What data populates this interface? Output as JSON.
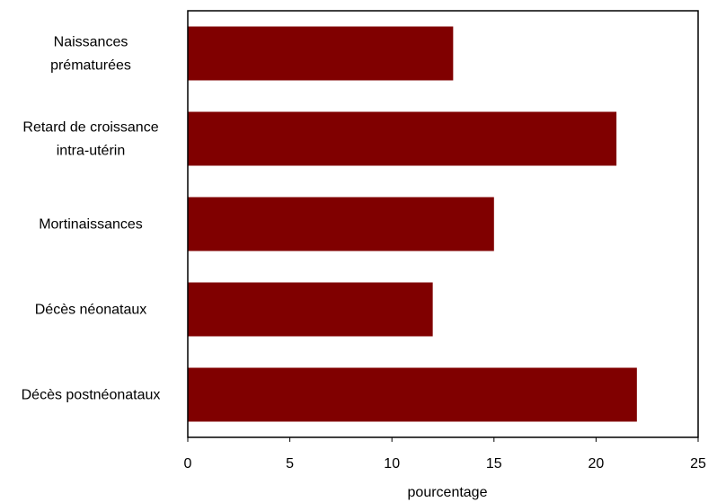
{
  "chart_data": {
    "type": "bar",
    "orientation": "horizontal",
    "categories": [
      [
        "Naissances",
        "prématurées"
      ],
      [
        "Retard de croissance",
        "intra-utérin"
      ],
      [
        "Mortinaissances"
      ],
      [
        "Décès néonataux"
      ],
      [
        "Décès postnéonataux"
      ]
    ],
    "values": [
      13,
      21,
      15,
      12,
      22
    ],
    "xlabel": "pourcentage",
    "ylabel": "",
    "xlim": [
      0,
      25
    ],
    "xticks": [
      "0",
      "5",
      "10",
      "15",
      "20",
      "25"
    ],
    "grid": false,
    "bar_color": "#800000"
  }
}
